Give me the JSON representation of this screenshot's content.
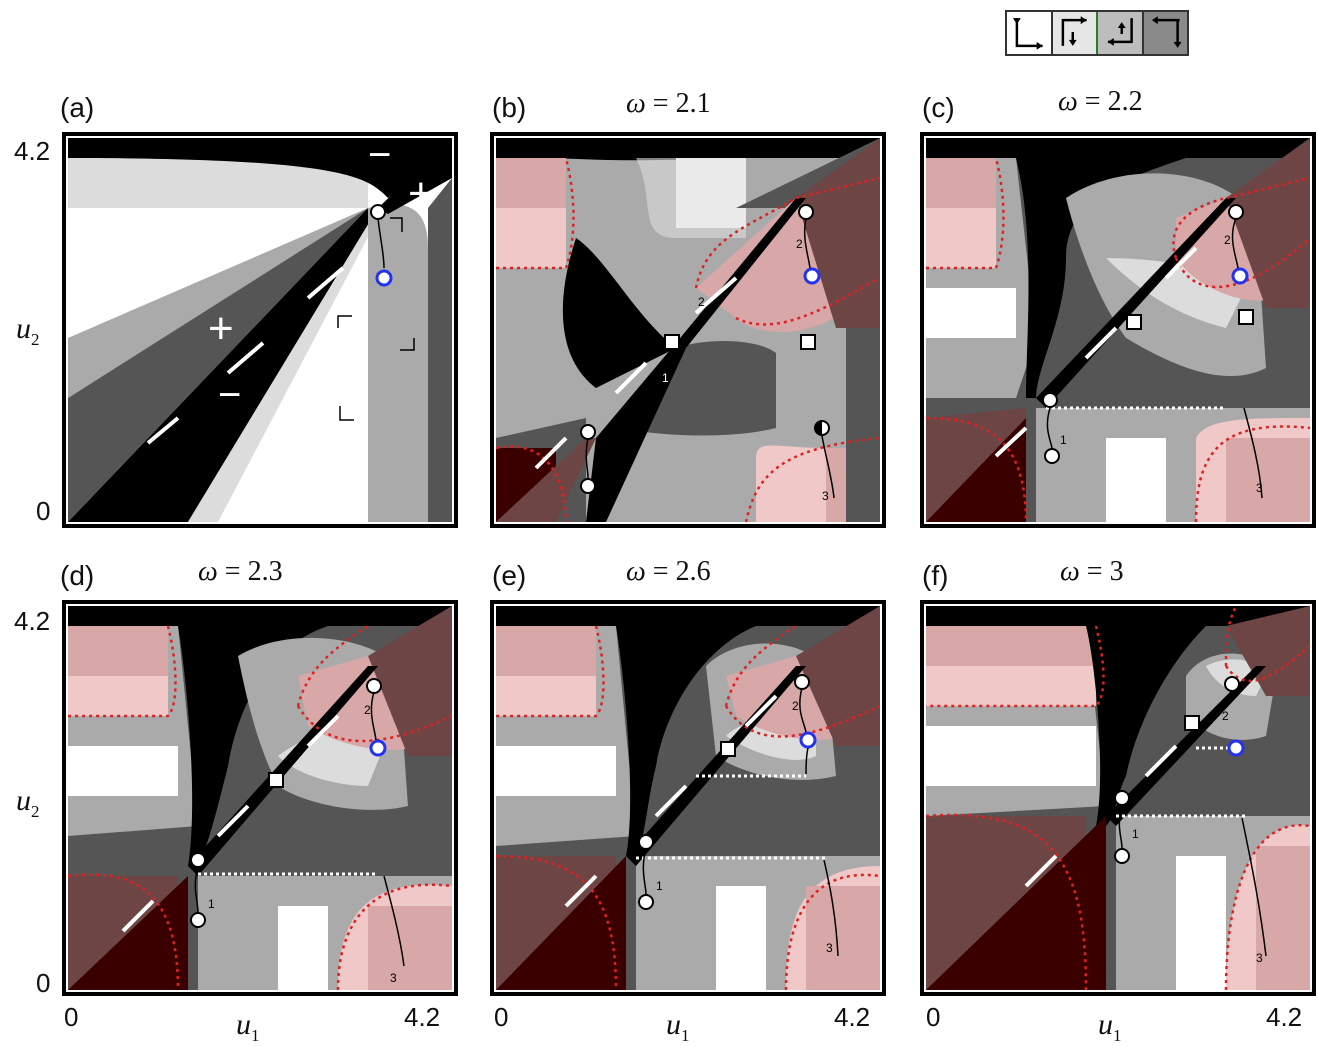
{
  "colors": {
    "black": "#000000",
    "dark_gray": "#555555",
    "mid_gray": "#aaaaaa",
    "light_gray": "#dcdcdc",
    "white": "#ffffff",
    "dark_red": "#3a0000",
    "mid_red": "#6e4545",
    "pink_light": "#f0c8c8",
    "pink_mid": "#d8a8a8",
    "red_dotted": "#dd2222",
    "blue_circle": "#2233ee"
  },
  "legend": {
    "icons": [
      "arrow-right-down-icon",
      "arrow-right-left-down-icon",
      "arrow-left-up-right-icon",
      "arrow-left-down-icon"
    ]
  },
  "axes": {
    "y_top": "4.2",
    "y_bottom": "0",
    "x_left": "0",
    "x_right": "4.2",
    "x_var": "u",
    "x_sub": "1",
    "y_var": "u",
    "y_sub": "2"
  },
  "panels": [
    {
      "label": "(a)",
      "omega": ""
    },
    {
      "label": "(b)",
      "omega_prefix": "ω",
      "omega": "= 2.1"
    },
    {
      "label": "(c)",
      "omega_prefix": "ω",
      "omega": "= 2.2"
    },
    {
      "label": "(d)",
      "omega_prefix": "ω",
      "omega": "= 2.3"
    },
    {
      "label": "(e)",
      "omega_prefix": "ω",
      "omega": "= 2.6"
    },
    {
      "label": "(f)",
      "omega_prefix": "ω",
      "omega": "= 3"
    }
  ],
  "panel_a_signs": [
    "−",
    "+",
    "+",
    "−"
  ],
  "path_labels": [
    "1",
    "2",
    "3"
  ]
}
